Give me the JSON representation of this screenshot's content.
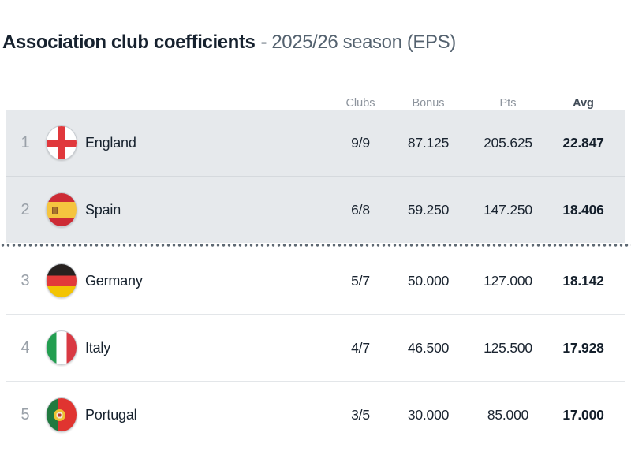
{
  "title": {
    "main": "Association club coefficients",
    "sub": "- 2025/26 season (EPS)"
  },
  "table": {
    "headers": {
      "clubs": "Clubs",
      "bonus": "Bonus",
      "pts": "Pts",
      "avg": "Avg"
    },
    "rows": [
      {
        "rank": "1",
        "country": "England",
        "flag_icon": "england-flag-icon",
        "clubs": "9/9",
        "bonus": "87.125",
        "pts": "205.625",
        "avg": "22.847",
        "highlighted": true
      },
      {
        "rank": "2",
        "country": "Spain",
        "flag_icon": "spain-flag-icon",
        "clubs": "6/8",
        "bonus": "59.250",
        "pts": "147.250",
        "avg": "18.406",
        "highlighted": true
      },
      {
        "rank": "3",
        "country": "Germany",
        "flag_icon": "germany-flag-icon",
        "clubs": "5/7",
        "bonus": "50.000",
        "pts": "127.000",
        "avg": "18.142",
        "highlighted": false
      },
      {
        "rank": "4",
        "country": "Italy",
        "flag_icon": "italy-flag-icon",
        "clubs": "4/7",
        "bonus": "46.500",
        "pts": "125.500",
        "avg": "17.928",
        "highlighted": false
      },
      {
        "rank": "5",
        "country": "Portugal",
        "flag_icon": "portugal-flag-icon",
        "clubs": "3/5",
        "bonus": "30.000",
        "pts": "85.000",
        "avg": "17.000",
        "highlighted": false
      }
    ],
    "cutoff_after_rank": 2
  },
  "colors": {
    "highlight_row_bg": "#e6e9ec",
    "cutoff_dot": "#5f6a74",
    "text_dark": "#16212e",
    "text_muted": "#8d949d"
  }
}
